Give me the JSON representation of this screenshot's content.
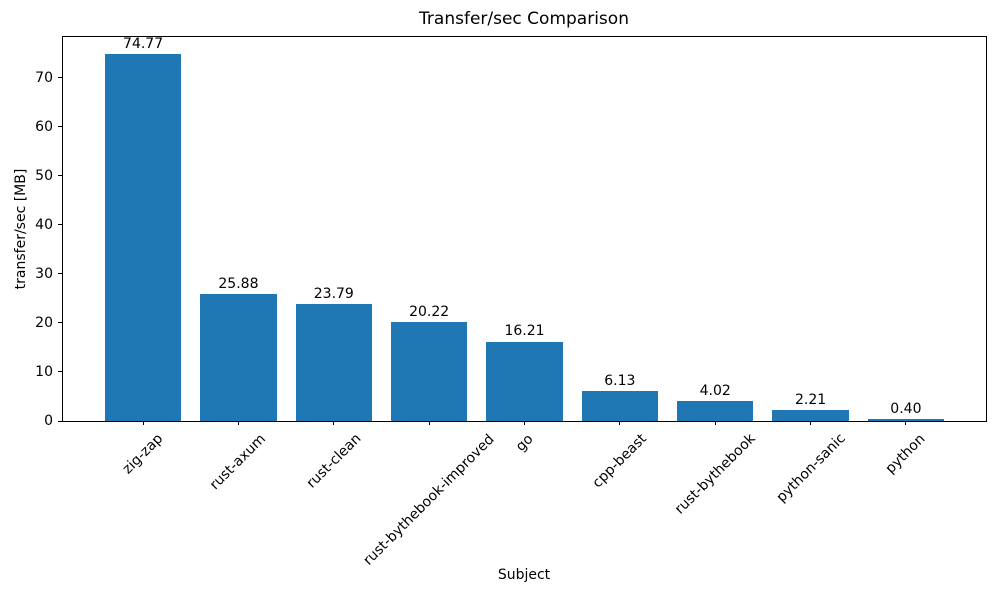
{
  "chart_data": {
    "type": "bar",
    "title": "Transfer/sec Comparison",
    "xlabel": "Subject",
    "ylabel": "transfer/sec [MB]",
    "categories": [
      "zig-zap",
      "rust-axum",
      "rust-clean",
      "rust-bythebook-improved",
      "go",
      "cpp-beast",
      "rust-bythebook",
      "python-sanic",
      "python"
    ],
    "values": [
      74.77,
      25.88,
      23.79,
      20.22,
      16.21,
      6.13,
      4.02,
      2.21,
      0.4
    ],
    "value_labels": [
      "74.77",
      "25.88",
      "23.79",
      "20.22",
      "16.21",
      "6.13",
      "4.02",
      "2.21",
      "0.40"
    ],
    "yticks": [
      0,
      10,
      20,
      30,
      40,
      50,
      60,
      70
    ],
    "ylim": [
      0,
      78.3
    ],
    "bar_color": "#1f77b4",
    "text_color": "#000000",
    "background_color": "#ffffff",
    "grid": false,
    "legend_position": "none",
    "xticklabel_rotation_deg": 45
  }
}
